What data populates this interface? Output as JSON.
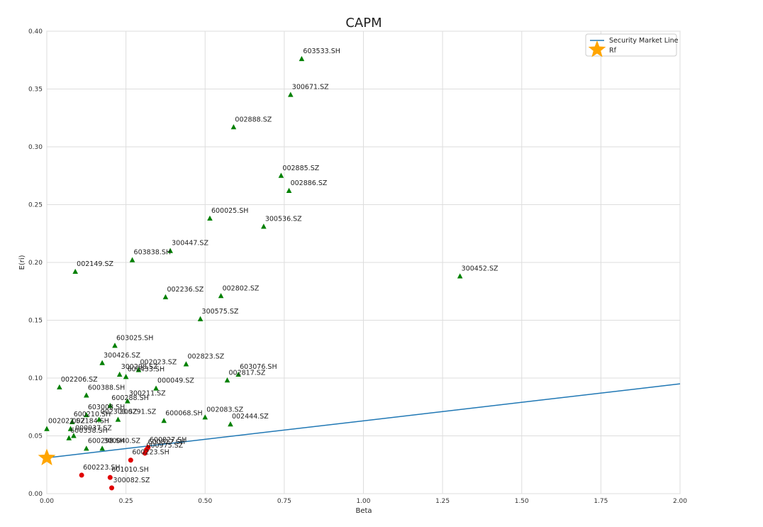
{
  "chart_data": {
    "type": "scatter",
    "title": "CAPM",
    "xlabel": "Beta",
    "ylabel": "E(ri)",
    "xlim": [
      0.0,
      2.0
    ],
    "ylim": [
      0.0,
      0.4
    ],
    "x_ticks": [
      "0.00",
      "0.25",
      "0.50",
      "0.75",
      "1.00",
      "1.25",
      "1.50",
      "1.75",
      "2.00"
    ],
    "y_ticks": [
      "0.00",
      "0.05",
      "0.10",
      "0.15",
      "0.20",
      "0.25",
      "0.30",
      "0.35",
      "0.40"
    ],
    "grid": true,
    "legend_position": "top-right",
    "legend": [
      "Security Market Line",
      "Rf"
    ],
    "colors": {
      "sml": "#1f77b4",
      "above": "#008000",
      "below": "#e00000",
      "rf": "#ffa500",
      "grid": "#dddddd"
    },
    "sml": {
      "name": "Security Market Line",
      "x": [
        0.0,
        2.0
      ],
      "y": [
        0.031,
        0.095
      ]
    },
    "rf": {
      "name": "Rf",
      "x": 0.0,
      "y": 0.031
    },
    "points_above": [
      {
        "label": "603533.SH",
        "x": 0.805,
        "y": 0.376
      },
      {
        "label": "300671.SZ",
        "x": 0.77,
        "y": 0.345
      },
      {
        "label": "002888.SZ",
        "x": 0.59,
        "y": 0.317
      },
      {
        "label": "002885.SZ",
        "x": 0.74,
        "y": 0.275
      },
      {
        "label": "002886.SZ",
        "x": 0.765,
        "y": 0.262
      },
      {
        "label": "600025.SH",
        "x": 0.515,
        "y": 0.238
      },
      {
        "label": "300536.SZ",
        "x": 0.685,
        "y": 0.231
      },
      {
        "label": "300447.SZ",
        "x": 0.39,
        "y": 0.21
      },
      {
        "label": "603838.SH",
        "x": 0.27,
        "y": 0.202
      },
      {
        "label": "002149.SZ",
        "x": 0.09,
        "y": 0.192
      },
      {
        "label": "300452.SZ",
        "x": 1.305,
        "y": 0.188
      },
      {
        "label": "002236.SZ",
        "x": 0.375,
        "y": 0.17
      },
      {
        "label": "002802.SZ",
        "x": 0.55,
        "y": 0.171
      },
      {
        "label": "300575.SZ",
        "x": 0.485,
        "y": 0.151
      },
      {
        "label": "603025.SH",
        "x": 0.215,
        "y": 0.128
      },
      {
        "label": "300426.SZ",
        "x": 0.175,
        "y": 0.113
      },
      {
        "label": "002823.SZ",
        "x": 0.44,
        "y": 0.112
      },
      {
        "label": "002023.SZ",
        "x": 0.29,
        "y": 0.107
      },
      {
        "label": "300298.SZ",
        "x": 0.23,
        "y": 0.103
      },
      {
        "label": "600433.SH",
        "x": 0.25,
        "y": 0.101
      },
      {
        "label": "603076.SH",
        "x": 0.605,
        "y": 0.103
      },
      {
        "label": "002817.SZ",
        "x": 0.57,
        "y": 0.098
      },
      {
        "label": "002206.SZ",
        "x": 0.04,
        "y": 0.092
      },
      {
        "label": "000049.SZ",
        "x": 0.345,
        "y": 0.091
      },
      {
        "label": "600388.SH",
        "x": 0.125,
        "y": 0.085
      },
      {
        "label": "300211.SZ",
        "x": 0.255,
        "y": 0.08
      },
      {
        "label": "600288.SH",
        "x": 0.2,
        "y": 0.076
      },
      {
        "label": "603008.SH",
        "x": 0.125,
        "y": 0.068
      },
      {
        "label": "002303.SZ",
        "x": 0.165,
        "y": 0.064
      },
      {
        "label": "300291.SZ",
        "x": 0.225,
        "y": 0.064
      },
      {
        "label": "600068.SH",
        "x": 0.37,
        "y": 0.063
      },
      {
        "label": "002083.SZ",
        "x": 0.5,
        "y": 0.066
      },
      {
        "label": "002444.SZ",
        "x": 0.58,
        "y": 0.06
      },
      {
        "label": "600210.SH",
        "x": 0.08,
        "y": 0.062
      },
      {
        "label": "002022.SZ",
        "x": 0.0,
        "y": 0.056
      },
      {
        "label": "002184.SH",
        "x": 0.075,
        "y": 0.056
      },
      {
        "label": "000937.SZ",
        "x": 0.085,
        "y": 0.05
      },
      {
        "label": "600358.SH",
        "x": 0.07,
        "y": 0.048
      },
      {
        "label": "600298.SH",
        "x": 0.125,
        "y": 0.039
      },
      {
        "label": "300040.SZ",
        "x": 0.175,
        "y": 0.039
      }
    ],
    "points_below": [
      {
        "label": "600827.SH",
        "x": 0.32,
        "y": 0.04
      },
      {
        "label": "600817.SH",
        "x": 0.315,
        "y": 0.038
      },
      {
        "label": "000975.SZ",
        "x": 0.31,
        "y": 0.035
      },
      {
        "label": "600223.SH",
        "x": 0.265,
        "y": 0.029
      },
      {
        "label": "600223.SH",
        "x": 0.11,
        "y": 0.016
      },
      {
        "label": "601010.SH",
        "x": 0.2,
        "y": 0.014
      },
      {
        "label": "300082.SZ",
        "x": 0.205,
        "y": 0.005
      }
    ]
  }
}
